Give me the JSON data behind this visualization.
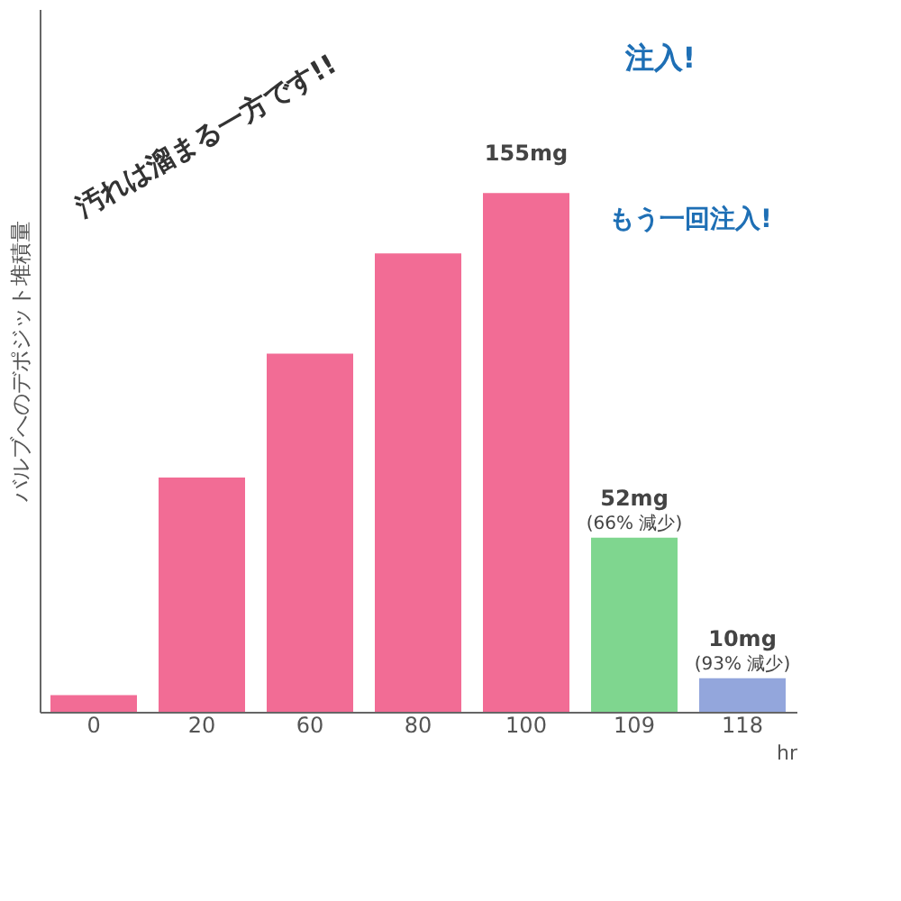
{
  "chart_data": {
    "type": "bar",
    "ylim": [
      0,
      210
    ],
    "categories": [
      "0",
      "20",
      "60",
      "80",
      "100",
      "109",
      "118"
    ],
    "values": [
      5,
      70,
      107,
      137,
      155,
      52,
      10
    ],
    "colors": [
      "#f26c95",
      "#f26c95",
      "#f26c95",
      "#f26c95",
      "#f26c95",
      "#7fd68f",
      "#93a6dc"
    ],
    "value_labels": [
      null,
      null,
      null,
      null,
      "155mg",
      "52mg",
      "10mg"
    ],
    "xlabel": "hr",
    "ylabel": "バルブへのデポジット堆積量",
    "annotations": [
      "汚れは溜まる一方です!!",
      "注入!",
      "もう一回注入!",
      {
        "text": "(66% 減少)",
        "x": "109",
        "y": 52
      },
      {
        "text": "(93% 減少)",
        "x": "118",
        "y": 10
      }
    ]
  }
}
